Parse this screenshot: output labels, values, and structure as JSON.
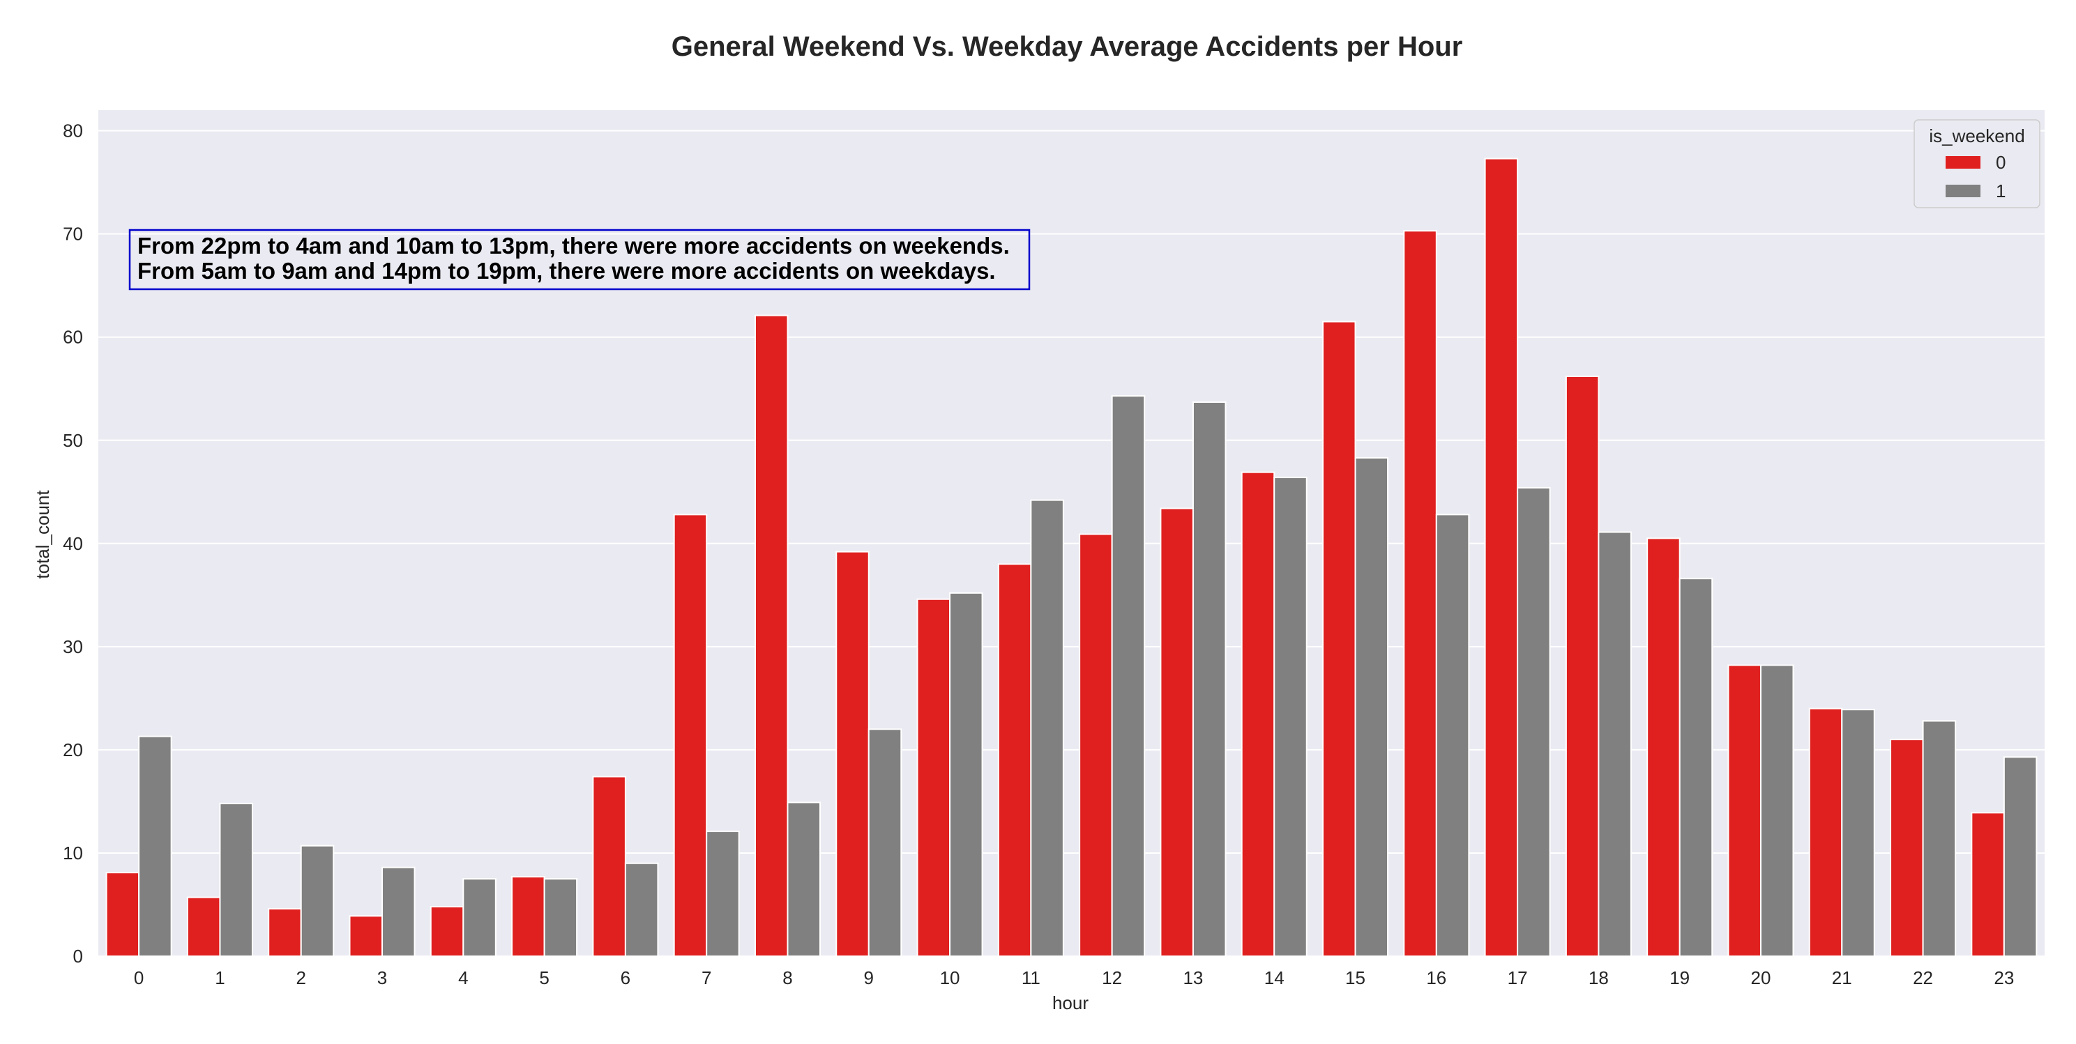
{
  "chart_data": {
    "type": "bar",
    "title": "General Weekend Vs. Weekday Average Accidents per Hour",
    "xlabel": "hour",
    "ylabel": "total_count",
    "ylim": [
      0,
      82
    ],
    "yticks": [
      0,
      10,
      20,
      30,
      40,
      50,
      60,
      70,
      80
    ],
    "grid": true,
    "categories": [
      "0",
      "1",
      "2",
      "3",
      "4",
      "5",
      "6",
      "7",
      "8",
      "9",
      "10",
      "11",
      "12",
      "13",
      "14",
      "15",
      "16",
      "17",
      "18",
      "19",
      "20",
      "21",
      "22",
      "23"
    ],
    "legend": {
      "title": "is_weekend",
      "placement": "top-right"
    },
    "series": [
      {
        "name": "0",
        "color": "#e01f1f",
        "values": [
          8.1,
          5.7,
          4.6,
          3.9,
          4.8,
          7.7,
          17.4,
          42.8,
          62.1,
          39.2,
          34.6,
          38.0,
          40.9,
          43.4,
          46.9,
          61.5,
          70.3,
          77.3,
          56.2,
          40.5,
          28.2,
          24.0,
          21.0,
          13.9
        ]
      },
      {
        "name": "1",
        "color": "#808080",
        "values": [
          21.3,
          14.8,
          10.7,
          8.6,
          7.5,
          7.5,
          9.0,
          12.1,
          14.9,
          22.0,
          35.2,
          44.2,
          54.3,
          53.7,
          46.4,
          48.3,
          42.8,
          45.4,
          41.1,
          36.6,
          28.2,
          23.9,
          22.8,
          19.3
        ]
      }
    ],
    "annotation": {
      "lines": [
        "From 22pm to 4am and 10am to 13pm, there were more accidents on weekends.",
        "From 5am to 9am and 14pm to 19pm, there were more accidents on weekdays."
      ],
      "border_color": "#0000cc"
    },
    "colors": {
      "plot_background": "#eaeaf2",
      "grid": "#ffffff"
    }
  }
}
